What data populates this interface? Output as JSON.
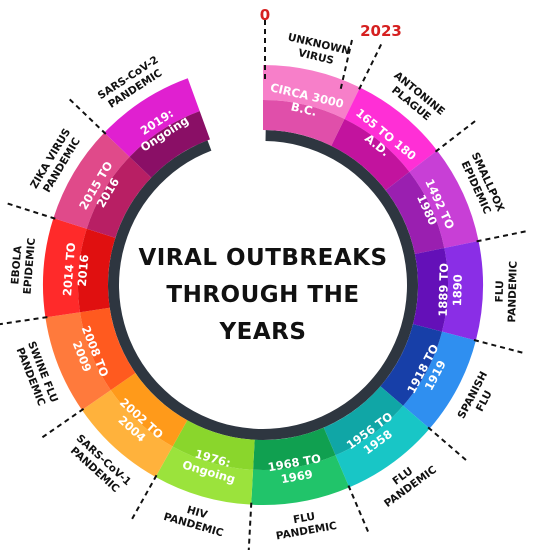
{
  "center_title": [
    "VIRAL OUTBREAKS",
    "THROUGH THE",
    "YEARS"
  ],
  "start_marker": "0",
  "end_marker": "2023",
  "events": [
    {
      "period": [
        "CIRCA 3000",
        "B.C."
      ],
      "name": [
        "UNKNOWN",
        "VIRUS"
      ],
      "color": "#f77fc9",
      "inner_color": "#e04faa"
    },
    {
      "period": [
        "165 TO 180",
        "A.D."
      ],
      "name": [
        "ANTONINE",
        "PLAGUE"
      ],
      "color": "#ff2fd6",
      "inner_color": "#c2139e"
    },
    {
      "period": [
        "1492 TO",
        "1980"
      ],
      "name": [
        "SMALLPOX",
        "EPIDEMIC"
      ],
      "color": "#c83fd6",
      "inner_color": "#9a1fb0"
    },
    {
      "period": [
        "1889 TO",
        "1890"
      ],
      "name": [
        "FLU",
        "PANDEMIC"
      ],
      "color": "#8a2ee6",
      "inner_color": "#6410b8"
    },
    {
      "period": [
        "1918 TO",
        "1919"
      ],
      "name": [
        "SPANISH",
        "FLU"
      ],
      "color": "#2f8ff0",
      "inner_color": "#173fa8"
    },
    {
      "period": [
        "1956 TO",
        "1958"
      ],
      "name": [
        "FLU",
        "PANDEMIC"
      ],
      "color": "#18c6c6",
      "inner_color": "#10a6a6"
    },
    {
      "period": [
        "1968 TO",
        "1969"
      ],
      "name": [
        "FLU",
        "PANDEMIC"
      ],
      "color": "#21c46a",
      "inner_color": "#10a050"
    },
    {
      "period": [
        "1976:",
        "Ongoing"
      ],
      "name": [
        "HIV",
        "PANDEMIC"
      ],
      "color": "#9be33c",
      "inner_color": "#8ad62c"
    },
    {
      "period": [
        "2002 TO",
        "2004"
      ],
      "name": [
        "SARS-CoV-1",
        "PANDEMIC"
      ],
      "color": "#ffb23c",
      "inner_color": "#ff9a1a"
    },
    {
      "period": [
        "2008 TO",
        "2009"
      ],
      "name": [
        "SWINE FLU",
        "PANDEMIC"
      ],
      "color": "#ff7a3c",
      "inner_color": "#ff5a1f"
    },
    {
      "period": [
        "2014 TO",
        "2016"
      ],
      "name": [
        "EBOLA",
        "EPIDEMIC"
      ],
      "color": "#ff2a2a",
      "inner_color": "#e01010"
    },
    {
      "period": [
        "2015 TO",
        "2016"
      ],
      "name": [
        "ZIKA VIRUS",
        "PANDEMIC"
      ],
      "color": "#e04a8a",
      "inner_color": "#b81f64"
    },
    {
      "period": [
        "2019:",
        "Ongoing"
      ],
      "name": [
        "SARS-CoV-2",
        "PANDEMIC"
      ],
      "color": "#e020d0",
      "inner_color": "#8a0f66"
    }
  ],
  "colors": {
    "dark_ring": "#2e3640",
    "divider": "#111111",
    "marker": "#d62020"
  }
}
